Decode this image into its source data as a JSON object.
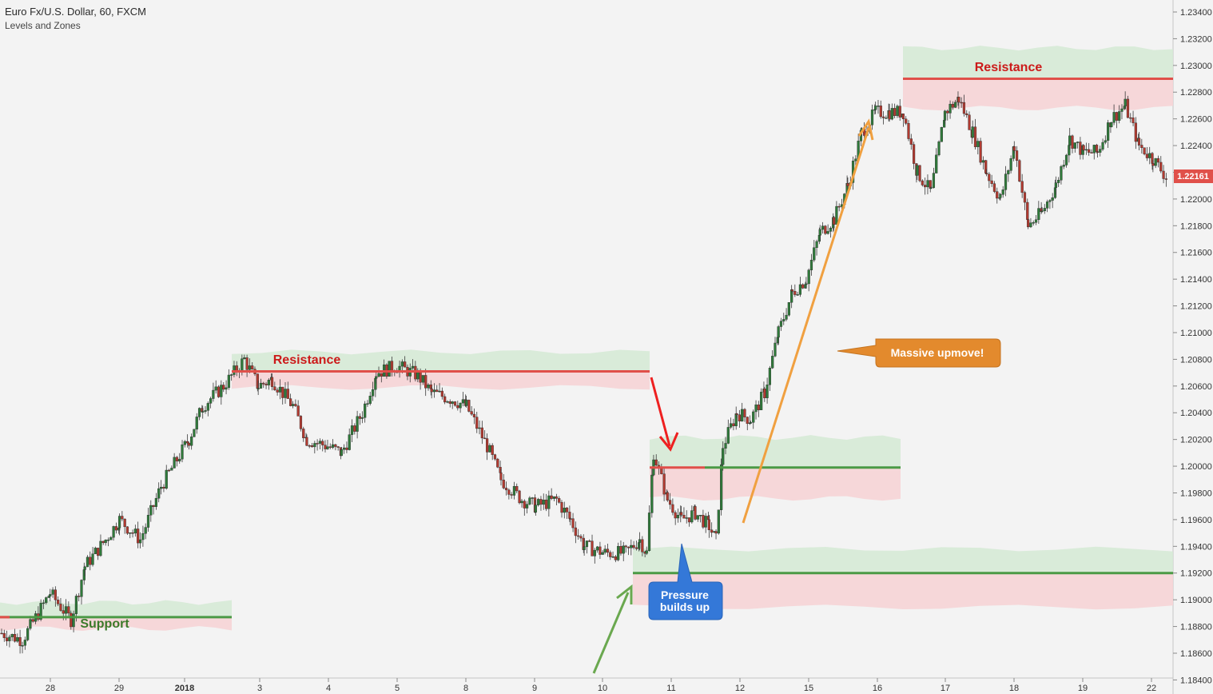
{
  "header": {
    "title": "Euro Fx/U.S. Dollar, 60, FXCM",
    "indicator": "Levels and Zones"
  },
  "colors": {
    "up": "#2f7a3a",
    "down": "#b23a30",
    "support": "#4b9a45",
    "resistance": "#e0504a",
    "zone_green": "#d6ead6",
    "zone_red": "#f6d4d6",
    "orange": "#e38a2d",
    "blue": "#3478d8",
    "price_badge": "#e0504a"
  },
  "chart_data": {
    "type": "candlestick",
    "symbol": "Euro Fx/U.S. Dollar",
    "timeframe": "60",
    "last_price": "1.22161",
    "y_ticks": [
      "1.23400",
      "1.23200",
      "1.23000",
      "1.22800",
      "1.22600",
      "1.22400",
      "1.22200",
      "1.22000",
      "1.21800",
      "1.21600",
      "1.21400",
      "1.21200",
      "1.21000",
      "1.20800",
      "1.20600",
      "1.20400",
      "1.20200",
      "1.20000",
      "1.19800",
      "1.19600",
      "1.19400",
      "1.19200",
      "1.19000",
      "1.18800",
      "1.18600",
      "1.18400"
    ],
    "y_range": [
      1.1832,
      1.235
    ],
    "x_ticks": [
      "28",
      "29",
      "2018",
      "3",
      "4",
      "5",
      "8",
      "9",
      "10",
      "11",
      "12",
      "15",
      "16",
      "17",
      "18",
      "19",
      "22"
    ],
    "path_points": [
      [
        0,
        1.1875
      ],
      [
        3,
        1.187
      ],
      [
        7,
        1.1905
      ],
      [
        10,
        1.1885
      ],
      [
        12,
        1.1925
      ],
      [
        15,
        1.1945
      ],
      [
        17,
        1.196
      ],
      [
        20,
        1.1945
      ],
      [
        23,
        1.1985
      ],
      [
        27,
        1.202
      ],
      [
        29,
        1.2045
      ],
      [
        32,
        1.206
      ],
      [
        35,
        1.208
      ],
      [
        37,
        1.206
      ],
      [
        39,
        1.2065
      ],
      [
        42,
        1.2045
      ],
      [
        44,
        1.202
      ],
      [
        47,
        1.2015
      ],
      [
        49,
        1.201
      ],
      [
        52,
        1.204
      ],
      [
        54,
        1.207
      ],
      [
        57,
        1.2075
      ],
      [
        60,
        1.2068
      ],
      [
        62,
        1.2055
      ],
      [
        65,
        1.205
      ],
      [
        67,
        1.2045
      ],
      [
        70,
        1.2015
      ],
      [
        72,
        1.199
      ],
      [
        75,
        1.1975
      ],
      [
        77,
        1.197
      ],
      [
        80,
        1.1975
      ],
      [
        82,
        1.196
      ],
      [
        84,
        1.194
      ],
      [
        87,
        1.1935
      ],
      [
        90,
        1.1935
      ],
      [
        92,
        1.1945
      ],
      [
        93,
        1.1935
      ],
      [
        94,
        1.201
      ],
      [
        96,
        1.1975
      ],
      [
        98,
        1.196
      ],
      [
        100,
        1.1965
      ],
      [
        102,
        1.1955
      ],
      [
        103,
        1.1945
      ],
      [
        104,
        1.2015
      ],
      [
        106,
        1.204
      ],
      [
        108,
        1.2035
      ],
      [
        110,
        1.2055
      ],
      [
        112,
        1.21
      ],
      [
        114,
        1.213
      ],
      [
        116,
        1.214
      ],
      [
        118,
        1.2175
      ],
      [
        120,
        1.2185
      ],
      [
        122,
        1.221
      ],
      [
        124,
        1.225
      ],
      [
        126,
        1.2265
      ],
      [
        128,
        1.2265
      ],
      [
        130,
        1.2265
      ],
      [
        132,
        1.222
      ],
      [
        134,
        1.2205
      ],
      [
        136,
        1.2265
      ],
      [
        138,
        1.2275
      ],
      [
        140,
        1.225
      ],
      [
        142,
        1.222
      ],
      [
        144,
        1.22
      ],
      [
        146,
        1.224
      ],
      [
        148,
        1.218
      ],
      [
        150,
        1.219
      ],
      [
        152,
        1.221
      ],
      [
        154,
        1.2245
      ],
      [
        156,
        1.2235
      ],
      [
        158,
        1.2235
      ],
      [
        160,
        1.226
      ],
      [
        162,
        1.227
      ],
      [
        164,
        1.224
      ],
      [
        166,
        1.223
      ],
      [
        168,
        1.2216
      ]
    ],
    "levels": [
      {
        "kind": "support",
        "price": 1.1887,
        "zone_low": 1.18785,
        "zone_high": 1.1898,
        "color": "#4b9a45"
      },
      {
        "kind": "resistance",
        "price": 1.2071,
        "zone_low": 1.2059,
        "zone_high": 1.20855,
        "color": "#e0504a"
      },
      {
        "kind": "resistance_flipped_support",
        "price": 1.1999,
        "zone_low": 1.1976,
        "zone_high": 1.20215,
        "color": "#4b9a45"
      },
      {
        "kind": "support",
        "price": 1.192,
        "zone_low": 1.18945,
        "zone_high": 1.1938,
        "color": "#4b9a45"
      },
      {
        "kind": "resistance",
        "price": 1.229,
        "zone_low": 1.2268,
        "zone_high": 1.2313,
        "color": "#e0504a"
      }
    ],
    "annotations": [
      {
        "text": "Support"
      },
      {
        "text": "Resistance"
      },
      {
        "text": "Resistance"
      },
      {
        "text": "Massive upmove!"
      },
      {
        "text": "Pressure builds up"
      }
    ]
  },
  "labels": {
    "support": "Support",
    "resistance_left": "Resistance",
    "resistance_right": "Resistance",
    "massive": "Massive upmove!",
    "pressure_line1": "Pressure",
    "pressure_line2": "builds up"
  }
}
